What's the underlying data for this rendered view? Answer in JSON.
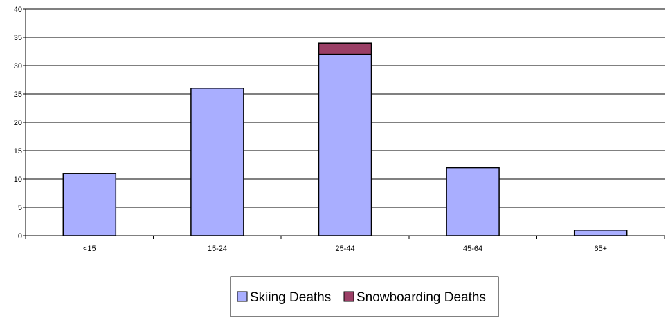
{
  "chart_data": {
    "type": "bar",
    "stacked": true,
    "categories": [
      "<15",
      "15-24",
      "25-44",
      "45-64",
      "65+"
    ],
    "series": [
      {
        "name": "Skiing Deaths",
        "values": [
          11,
          26,
          32,
          12,
          1
        ],
        "color": "#A9AEFF"
      },
      {
        "name": "Snowboarding Deaths",
        "values": [
          0,
          0,
          2,
          0,
          0
        ],
        "color": "#9B3F66"
      }
    ],
    "ylim": [
      0,
      40
    ],
    "yticks": [
      0,
      5,
      10,
      15,
      20,
      25,
      30,
      35,
      40
    ],
    "grid": true,
    "legend_position": "bottom",
    "title": "",
    "xlabel": "",
    "ylabel": ""
  }
}
